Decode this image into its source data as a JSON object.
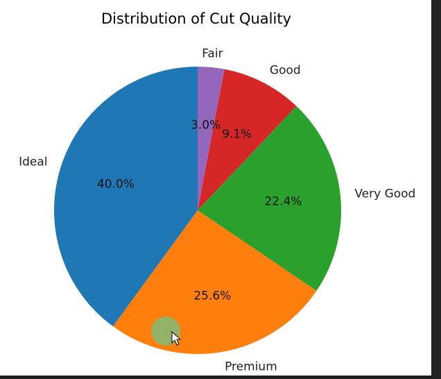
{
  "chart_data": {
    "type": "pie",
    "title": "Distribution of Cut Quality",
    "slices": [
      {
        "label": "Fair",
        "value": 3.0,
        "pct_label": "3.0%",
        "color": "#9467bd"
      },
      {
        "label": "Good",
        "value": 9.1,
        "pct_label": "9.1%",
        "color": "#d62728"
      },
      {
        "label": "Very Good",
        "value": 22.4,
        "pct_label": "22.4%",
        "color": "#2ca02c"
      },
      {
        "label": "Premium",
        "value": 25.6,
        "pct_label": "25.6%",
        "color": "#ff7f0e"
      },
      {
        "label": "Ideal",
        "value": 40.0,
        "pct_label": "40.0%",
        "color": "#1f77b4"
      }
    ],
    "start_angle": 90,
    "direction": "clockwise",
    "legend": "none"
  },
  "cursor": {
    "highlight_color": "#8db56d"
  }
}
